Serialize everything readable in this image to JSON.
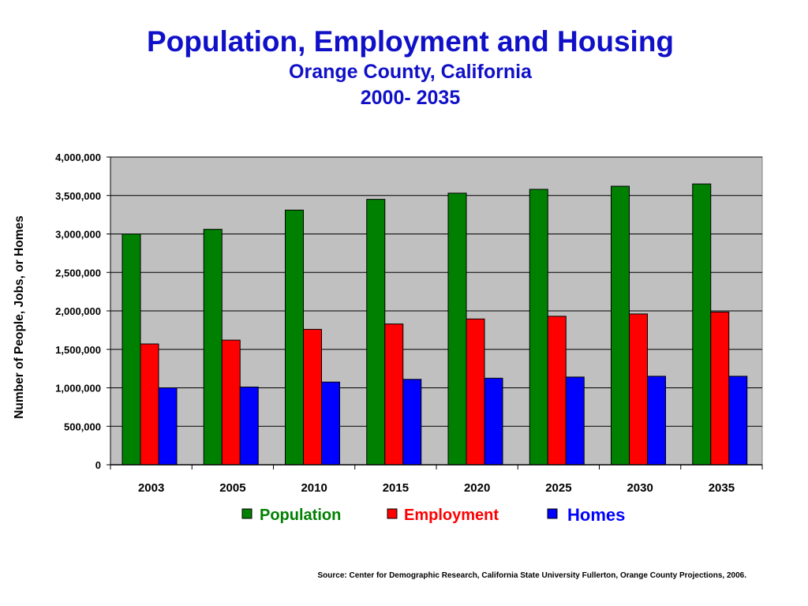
{
  "page": {
    "title": "Population, Employment and Housing",
    "subtitle": "Orange County, California",
    "period": "2000- 2035",
    "source": "Source: Center for Demographic Research, California State University Fullerton, Orange County Projections, 2006."
  },
  "colors": {
    "title": "#1010c8",
    "plot_bg": "#c0c0c0",
    "population": "#008000",
    "employment": "#ff0000",
    "homes": "#0000ff"
  },
  "chart_data": {
    "type": "bar",
    "ylabel": "Number of People, Jobs, or Homes",
    "xlabel": "",
    "ylim": [
      0,
      4000000
    ],
    "yticks": [
      0,
      500000,
      1000000,
      1500000,
      2000000,
      2500000,
      3000000,
      3500000,
      4000000
    ],
    "ytick_labels": [
      "0",
      "500,000",
      "1,000,000",
      "1,500,000",
      "2,000,000",
      "2,500,000",
      "3,000,000",
      "3,500,000",
      "4,000,000"
    ],
    "grid": true,
    "legend": "bottom",
    "categories": [
      "2003",
      "2005",
      "2010",
      "2015",
      "2020",
      "2025",
      "2030",
      "2035"
    ],
    "series": [
      {
        "name": "Population",
        "color": "#008000",
        "values": [
          3000000,
          3060000,
          3310000,
          3450000,
          3530000,
          3580000,
          3620000,
          3650000
        ]
      },
      {
        "name": "Employment",
        "color": "#ff0000",
        "values": [
          1570000,
          1620000,
          1760000,
          1830000,
          1895000,
          1930000,
          1960000,
          1985000
        ]
      },
      {
        "name": "Homes",
        "color": "#0000ff",
        "values": [
          1000000,
          1010000,
          1075000,
          1110000,
          1125000,
          1140000,
          1150000,
          1150000
        ]
      }
    ]
  }
}
